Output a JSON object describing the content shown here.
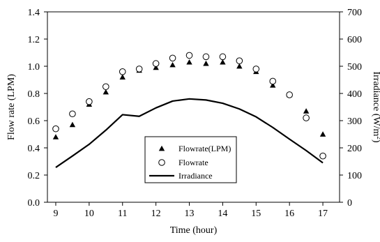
{
  "chart_data": {
    "type": "scatter",
    "xlabel": "Time (hour)",
    "ylabel_left": "Flow rate (LPM)",
    "ylabel_right_main": "Irradiance (W/m",
    "ylabel_right_sup": "2",
    "ylabel_right_close": ")",
    "xlim": [
      8.75,
      17.5
    ],
    "ylim_left": [
      0,
      1.4
    ],
    "ylim_right": [
      0,
      700
    ],
    "x_ticks": [
      9,
      10,
      11,
      12,
      13,
      14,
      15,
      16,
      17
    ],
    "y_left_ticks": [
      0.0,
      0.2,
      0.4,
      0.6,
      0.8,
      1.0,
      1.2,
      1.4
    ],
    "y_left_tick_labels": [
      "0.0",
      "0.2",
      "0.4",
      "0.6",
      "0.8",
      "1.0",
      "1.2",
      "1.4"
    ],
    "y_right_ticks": [
      0,
      100,
      200,
      300,
      400,
      500,
      600,
      700
    ],
    "grid": false,
    "legend_position": "bottom-center",
    "series": [
      {
        "name": "Flowrate(LPM)",
        "marker": "filled-triangle",
        "axis": "left",
        "x": [
          9,
          9.5,
          10,
          10.5,
          11,
          11.5,
          12,
          12.5,
          13,
          13.5,
          14,
          14.5,
          15,
          15.5,
          16,
          16.5,
          17
        ],
        "values": [
          0.48,
          0.57,
          0.72,
          0.81,
          0.92,
          0.97,
          0.99,
          1.01,
          1.03,
          1.02,
          1.03,
          1.0,
          0.96,
          0.86,
          0.79,
          0.67,
          0.5
        ]
      },
      {
        "name": "Flowrate",
        "marker": "open-circle",
        "axis": "left",
        "x": [
          9,
          9.5,
          10,
          10.5,
          11,
          11.5,
          12,
          12.5,
          13,
          13.5,
          14,
          14.5,
          15,
          15.5,
          16,
          16.5,
          17
        ],
        "values": [
          0.54,
          0.65,
          0.74,
          0.85,
          0.96,
          0.98,
          1.02,
          1.06,
          1.08,
          1.07,
          1.07,
          1.04,
          0.98,
          0.89,
          0.79,
          0.62,
          0.34
        ]
      },
      {
        "name": "Irradiance",
        "marker": "line",
        "axis": "right",
        "x": [
          9,
          9.5,
          10,
          10.5,
          11,
          11.5,
          12,
          12.5,
          13,
          13.5,
          14,
          14.5,
          15,
          15.5,
          16,
          16.5,
          17
        ],
        "values": [
          128,
          170,
          213,
          265,
          322,
          316,
          347,
          372,
          380,
          376,
          364,
          343,
          314,
          275,
          232,
          190,
          145
        ]
      }
    ]
  }
}
